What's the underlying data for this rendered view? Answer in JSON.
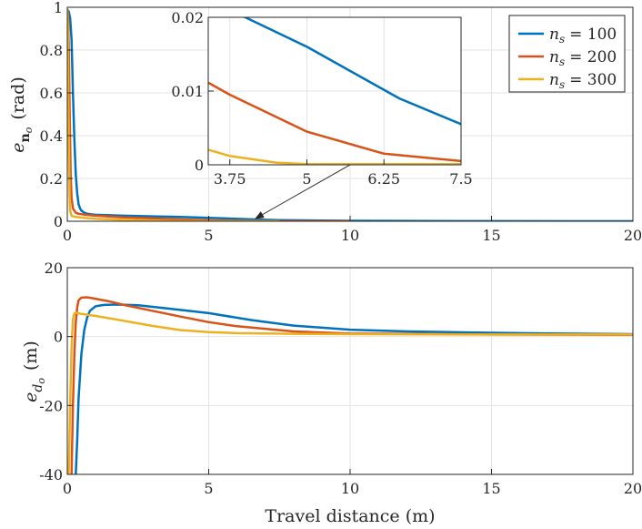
{
  "chart_data": [
    {
      "type": "line",
      "id": "top",
      "ylabel_main": "e",
      "ylabel_sub": "n",
      "ylabel_subsub": "o",
      "ylabel_unit": "(rad)",
      "xlim": [
        0,
        20
      ],
      "ylim": [
        0,
        1
      ],
      "xticks": [
        0,
        5,
        10,
        15,
        20
      ],
      "yticks": [
        0,
        0.2,
        0.4,
        0.6,
        0.8,
        1
      ],
      "ytick_labels": [
        "0",
        "0.2",
        "0.4",
        "0.6",
        "0.8",
        "1"
      ],
      "grid": true,
      "series": [
        {
          "name": "n_s = 100",
          "color": "#0072BD",
          "x": [
            0,
            0.05,
            0.1,
            0.15,
            0.2,
            0.25,
            0.3,
            0.35,
            0.4,
            0.45,
            0.5,
            0.6,
            0.7,
            0.8,
            1,
            1.5,
            2,
            3,
            4,
            5,
            6.5,
            7.5,
            10,
            15,
            20
          ],
          "y": [
            0.99,
            0.98,
            0.95,
            0.85,
            0.6,
            0.38,
            0.22,
            0.13,
            0.08,
            0.06,
            0.05,
            0.04,
            0.035,
            0.033,
            0.03,
            0.028,
            0.026,
            0.023,
            0.02,
            0.016,
            0.009,
            0.0055,
            0.002,
            0.0005,
            0.0002
          ]
        },
        {
          "name": "n_s = 200",
          "color": "#D95319",
          "x": [
            0,
            0.03,
            0.06,
            0.09,
            0.12,
            0.15,
            0.2,
            0.3,
            0.4,
            0.6,
            1,
            2,
            3,
            3.75,
            5,
            6.25,
            7.5,
            10
          ],
          "y": [
            0.99,
            0.95,
            0.75,
            0.45,
            0.22,
            0.11,
            0.06,
            0.04,
            0.035,
            0.031,
            0.026,
            0.018,
            0.013,
            0.0095,
            0.0045,
            0.0015,
            0.0005,
            0.0002
          ]
        },
        {
          "name": "n_s = 300",
          "color": "#EDB120",
          "x": [
            0,
            0.02,
            0.04,
            0.06,
            0.08,
            0.1,
            0.15,
            0.3,
            0.6,
            1,
            2,
            3,
            3.75,
            4.5,
            5,
            7.5
          ],
          "y": [
            0.99,
            0.9,
            0.55,
            0.3,
            0.12,
            0.05,
            0.025,
            0.02,
            0.016,
            0.012,
            0.007,
            0.003,
            0.0012,
            0.0003,
            0.0001,
            0.0001
          ]
        }
      ],
      "inset": {
        "xlim": [
          3.4,
          7.5
        ],
        "ylim": [
          0,
          0.02
        ],
        "xticks": [
          3.75,
          5,
          6.25,
          7.5
        ],
        "xtick_labels": [
          "3.75",
          "5",
          "6.25",
          "7.5"
        ],
        "yticks": [
          0,
          0.01,
          0.02
        ],
        "ytick_labels": [
          "0",
          "0.01",
          "0.02"
        ],
        "arrow_target": [
          6.5,
          0.003
        ]
      }
    },
    {
      "type": "line",
      "id": "bottom",
      "xlabel": "Travel distance (m)",
      "ylabel_main": "e",
      "ylabel_sub": "d",
      "ylabel_subsub": "o",
      "ylabel_unit": "(m)",
      "xlim": [
        0,
        20
      ],
      "ylim": [
        -40,
        20
      ],
      "xticks": [
        0,
        5,
        10,
        15,
        20
      ],
      "yticks": [
        -40,
        -20,
        0,
        20
      ],
      "ytick_labels": [
        "-40",
        "-20",
        "0",
        "20"
      ],
      "grid": true,
      "series": [
        {
          "name": "n_s = 100",
          "color": "#0072BD",
          "x": [
            0.3,
            0.35,
            0.4,
            0.5,
            0.6,
            0.7,
            0.8,
            1,
            1.3,
            1.8,
            2.5,
            3.5,
            5,
            6.5,
            8,
            10,
            12,
            15,
            17,
            20
          ],
          "y": [
            -40,
            -30,
            -18,
            -5,
            2,
            5.5,
            7.5,
            8.8,
            9.2,
            9.3,
            9.1,
            8.2,
            6.8,
            4.8,
            3.2,
            2,
            1.5,
            1.1,
            0.9,
            0.7
          ]
        },
        {
          "name": "n_s = 200",
          "color": "#D95319",
          "x": [
            0.15,
            0.2,
            0.25,
            0.3,
            0.35,
            0.4,
            0.5,
            0.7,
            1,
            1.5,
            2,
            3,
            4,
            5,
            6,
            8,
            10,
            15,
            20
          ],
          "y": [
            -40,
            -20,
            -5,
            4,
            8.5,
            10.5,
            11.3,
            11.4,
            11,
            10.2,
            9.2,
            7.5,
            5.8,
            4.2,
            3,
            1.5,
            0.9,
            0.6,
            0.5
          ]
        },
        {
          "name": "n_s = 300",
          "color": "#EDB120",
          "x": [
            0.05,
            0.1,
            0.15,
            0.2,
            0.25,
            0.3,
            0.5,
            1,
            2,
            3,
            4,
            5,
            6,
            8,
            10,
            15,
            20
          ],
          "y": [
            -40,
            -20,
            -3,
            5,
            6.7,
            6.9,
            6.6,
            6,
            4.6,
            3.1,
            1.9,
            1.3,
            1,
            0.8,
            0.7,
            0.6,
            0.6
          ]
        }
      ]
    }
  ],
  "legend": {
    "location": "top-right",
    "items": [
      {
        "var": "n",
        "sub": "s",
        "text": "= 100",
        "color": "#0072BD"
      },
      {
        "var": "n",
        "sub": "s",
        "text": "= 200",
        "color": "#D95319"
      },
      {
        "var": "n",
        "sub": "s",
        "text": "= 300",
        "color": "#EDB120"
      }
    ]
  }
}
